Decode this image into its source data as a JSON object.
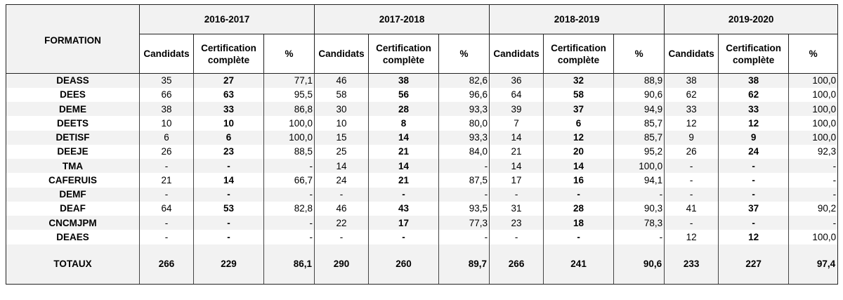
{
  "header": {
    "formation_label": "FORMATION",
    "years": [
      "2016-2017",
      "2017-2018",
      "2018-2019",
      "2019-2020"
    ],
    "col_candidats": "Candidats",
    "col_certif_line1": "Certification",
    "col_certif_line2": "complète",
    "col_pct": "%"
  },
  "rows": [
    {
      "name": "DEASS",
      "cells": [
        "35",
        "27",
        "77,1",
        "46",
        "38",
        "82,6",
        "36",
        "32",
        "88,9",
        "38",
        "38",
        "100,0"
      ]
    },
    {
      "name": "DEES",
      "cells": [
        "66",
        "63",
        "95,5",
        "58",
        "56",
        "96,6",
        "64",
        "58",
        "90,6",
        "62",
        "62",
        "100,0"
      ]
    },
    {
      "name": "DEME",
      "cells": [
        "38",
        "33",
        "86,8",
        "30",
        "28",
        "93,3",
        "39",
        "37",
        "94,9",
        "33",
        "33",
        "100,0"
      ]
    },
    {
      "name": "DEETS",
      "cells": [
        "10",
        "10",
        "100,0",
        "10",
        "8",
        "80,0",
        "7",
        "6",
        "85,7",
        "12",
        "12",
        "100,0"
      ]
    },
    {
      "name": "DETISF",
      "cells": [
        "6",
        "6",
        "100,0",
        "15",
        "14",
        "93,3",
        "14",
        "12",
        "85,7",
        "9",
        "9",
        "100,0"
      ]
    },
    {
      "name": "DEEJE",
      "cells": [
        "26",
        "23",
        "88,5",
        "25",
        "21",
        "84,0",
        "21",
        "20",
        "95,2",
        "26",
        "24",
        "92,3"
      ]
    },
    {
      "name": "TMA",
      "cells": [
        "-",
        "-",
        "-",
        "14",
        "14",
        "-",
        "14",
        "14",
        "100,0",
        "-",
        "-",
        "-"
      ]
    },
    {
      "name": "CAFERUIS",
      "cells": [
        "21",
        "14",
        "66,7",
        "24",
        "21",
        "87,5",
        "17",
        "16",
        "94,1",
        "-",
        "-",
        "-"
      ]
    },
    {
      "name": "DEMF",
      "cells": [
        "-",
        "-",
        "-",
        "-",
        "-",
        "-",
        "-",
        "-",
        "-",
        "-",
        "-",
        "-"
      ]
    },
    {
      "name": "DEAF",
      "cells": [
        "64",
        "53",
        "82,8",
        "46",
        "43",
        "93,5",
        "31",
        "28",
        "90,3",
        "41",
        "37",
        "90,2"
      ]
    },
    {
      "name": "CNCMJPM",
      "cells": [
        "-",
        "-",
        "-",
        "22",
        "17",
        "77,3",
        "23",
        "18",
        "78,3",
        "-",
        "-",
        "-"
      ]
    },
    {
      "name": "DEAES",
      "cells": [
        "-",
        "-",
        "-",
        "-",
        "-",
        "-",
        "-",
        "-",
        "-",
        "12",
        "12",
        "100,0"
      ]
    }
  ],
  "totals": {
    "name": "TOTAUX",
    "cells": [
      "266",
      "229",
      "86,1",
      "290",
      "260",
      "89,7",
      "266",
      "241",
      "90,6",
      "233",
      "227",
      "97,4"
    ]
  }
}
